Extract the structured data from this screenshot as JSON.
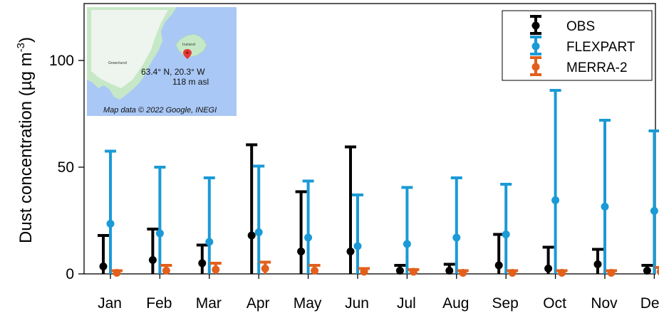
{
  "chart_data": {
    "type": "errorbar",
    "categories": [
      "Jan",
      "Feb",
      "Mar",
      "Apr",
      "May",
      "Jun",
      "Jul",
      "Aug",
      "Sep",
      "Oct",
      "Nov",
      "Dec"
    ],
    "ylabel_main": "Dust concentration (µg m",
    "ylabel_sup": "-3",
    "ylabel_tail": ")",
    "ylim": [
      0,
      125
    ],
    "yticks": [
      0,
      50,
      100
    ],
    "grid": false,
    "legend_position": "top-right",
    "series": [
      {
        "name": "OBS",
        "color": "#000000",
        "values": [
          3.5,
          6.5,
          5,
          18,
          10.5,
          10.5,
          1.5,
          1.5,
          4,
          2.5,
          4.5,
          1.5
        ],
        "lower": [
          0,
          0,
          0,
          0,
          0,
          0,
          0,
          0,
          0,
          0,
          0,
          0
        ],
        "upper": [
          18,
          21,
          13.5,
          60.5,
          38.5,
          59.5,
          4,
          4.5,
          18.5,
          12.5,
          11.5,
          4
        ]
      },
      {
        "name": "FLEXPART",
        "color": "#1a9ad6",
        "values": [
          23.5,
          19,
          15,
          19.5,
          17,
          13,
          14,
          17,
          18.5,
          34.5,
          31.5,
          29.5
        ],
        "lower": [
          0,
          0,
          0,
          0,
          0,
          0,
          0,
          0,
          0,
          0,
          0,
          0
        ],
        "upper": [
          57.5,
          50,
          45,
          50.5,
          43.5,
          37,
          40.5,
          45,
          42,
          86,
          72,
          67
        ]
      },
      {
        "name": "MERRA-2",
        "color": "#e2601c",
        "values": [
          0.5,
          1.5,
          2,
          2.5,
          1.5,
          1,
          1,
          0.5,
          0.5,
          0.5,
          0.5,
          1
        ],
        "lower": [
          0,
          0,
          0,
          0,
          0,
          0,
          0,
          0,
          0,
          0,
          0,
          0
        ],
        "upper": [
          1.5,
          4,
          5,
          5.5,
          4,
          2.5,
          2,
          1.5,
          1.5,
          1.5,
          1.5,
          3
        ]
      }
    ]
  },
  "inset_map": {
    "greenland_label": "Greenland",
    "iceland_label": "Iceland",
    "coordinates": "63.4° N, 20.3° W",
    "altitude": "118 m asl",
    "credit": "Map data © 2022 Google, INEGI",
    "water_color": "#aac8f5",
    "land_color": "#c6e8c6"
  }
}
